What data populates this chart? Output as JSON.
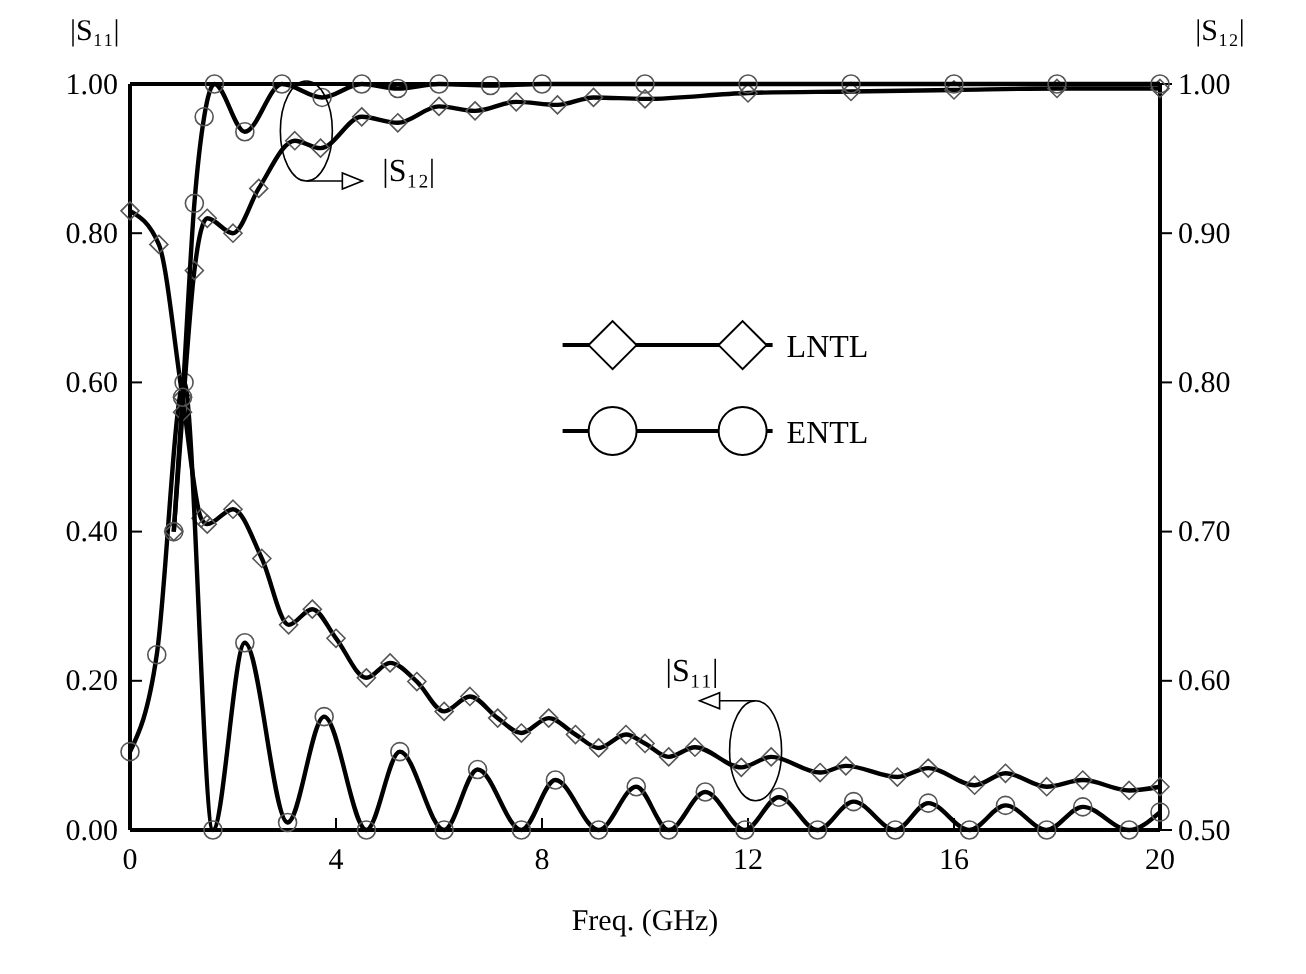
{
  "chart_data": {
    "type": "line",
    "xlabel": "Freq. (GHz)",
    "ylabel": "|S₁₁|",
    "y2label": "|S₁₂|",
    "xlim": [
      0,
      20
    ],
    "xticks": [
      0,
      4,
      8,
      12,
      16,
      20
    ],
    "ylim": [
      0,
      1
    ],
    "yticks": [
      {
        "value": 0,
        "label": "0.00"
      },
      {
        "value": 0.2,
        "label": "0.20"
      },
      {
        "value": 0.4,
        "label": "0.40"
      },
      {
        "value": 0.6,
        "label": "0.60"
      },
      {
        "value": 0.8,
        "label": "0.80"
      },
      {
        "value": 1,
        "label": "1.00"
      }
    ],
    "y2lim": [
      0.5,
      1
    ],
    "y2ticks": [
      {
        "value": 0.5,
        "label": "0.50"
      },
      {
        "value": 0.6,
        "label": "0.60"
      },
      {
        "value": 0.7,
        "label": "0.70"
      },
      {
        "value": 0.8,
        "label": "0.80"
      },
      {
        "value": 0.9,
        "label": "0.90"
      },
      {
        "value": 1,
        "label": "1.00"
      }
    ],
    "grid": false,
    "legend": "center",
    "line_style": "solid",
    "series": [
      {
        "name": "LNTL",
        "color": "#000000",
        "marker": "diamond",
        "x": [
          0,
          0.56,
          1.02,
          1.38,
          1.5,
          2.0,
          2.56,
          3.08,
          3.54,
          4.0,
          4.59,
          5.05,
          5.57,
          6.1,
          6.6,
          7.14,
          7.6,
          8.13,
          8.65,
          9.1,
          9.63,
          10.0,
          10.46,
          10.97,
          11.87,
          12.45,
          13.4,
          13.9,
          14.9,
          15.5,
          16.4,
          17.0,
          17.8,
          18.5,
          19.4,
          20
        ],
        "values": [
          0.83,
          0.785,
          0.58,
          0.418,
          0.41,
          0.43,
          0.364,
          0.275,
          0.296,
          0.257,
          0.204,
          0.224,
          0.199,
          0.159,
          0.179,
          0.15,
          0.13,
          0.15,
          0.128,
          0.11,
          0.128,
          0.116,
          0.098,
          0.111,
          0.084,
          0.098,
          0.077,
          0.086,
          0.071,
          0.083,
          0.06,
          0.076,
          0.058,
          0.067,
          0.053,
          0.058
        ]
      },
      {
        "name": "ENTL",
        "color": "#000000",
        "marker": "circle",
        "x": [
          0,
          0.52,
          1.05,
          1.61,
          2.23,
          3.06,
          3.77,
          4.59,
          5.24,
          6.1,
          6.75,
          7.6,
          8.26,
          9.1,
          9.83,
          10.46,
          11.17,
          11.94,
          12.6,
          13.35,
          14.05,
          14.86,
          15.5,
          16.3,
          17.0,
          17.8,
          18.5,
          19.4,
          20
        ],
        "values": [
          0.105,
          0.235,
          0.6,
          0,
          0.251,
          0.01,
          0.152,
          0,
          0.105,
          0,
          0.081,
          0,
          0.067,
          0,
          0.058,
          0,
          0.051,
          0,
          0.044,
          0,
          0.038,
          0,
          0.036,
          0,
          0.033,
          0,
          0.031,
          0,
          0.024
        ]
      },
      {
        "color": "#000000",
        "marker": "diamond",
        "axis": "y2",
        "x": [
          0.85,
          1.02,
          1.25,
          1.5,
          2.0,
          2.5,
          3.2,
          3.7,
          4.5,
          5.2,
          6.0,
          6.7,
          7.5,
          8.3,
          9.0,
          10.0,
          12.0,
          14.0,
          16.0,
          18.0,
          20.0
        ],
        "values": [
          0.7,
          0.78,
          0.875,
          0.91,
          0.9,
          0.93,
          0.962,
          0.957,
          0.978,
          0.974,
          0.985,
          0.982,
          0.988,
          0.986,
          0.991,
          0.99,
          0.994,
          0.995,
          0.996,
          0.997,
          0.997
        ]
      },
      {
        "color": "#000000",
        "marker": "circle",
        "axis": "y2",
        "x": [
          0.85,
          1.02,
          1.25,
          1.44,
          1.64,
          2.23,
          2.95,
          3.73,
          4.5,
          5.2,
          6.0,
          7.0,
          8.0,
          10.0,
          12.0,
          14.0,
          16.0,
          18.0,
          20.0
        ],
        "values": [
          0.7,
          0.79,
          0.92,
          0.978,
          1.0,
          0.968,
          1.0,
          0.991,
          1.0,
          0.997,
          1.0,
          0.999,
          1.0,
          1.0,
          1.0,
          1.0,
          1.0,
          1.0,
          1.0
        ]
      }
    ],
    "annotations": [
      "|S₁₂|",
      "|S₁₁|"
    ]
  }
}
